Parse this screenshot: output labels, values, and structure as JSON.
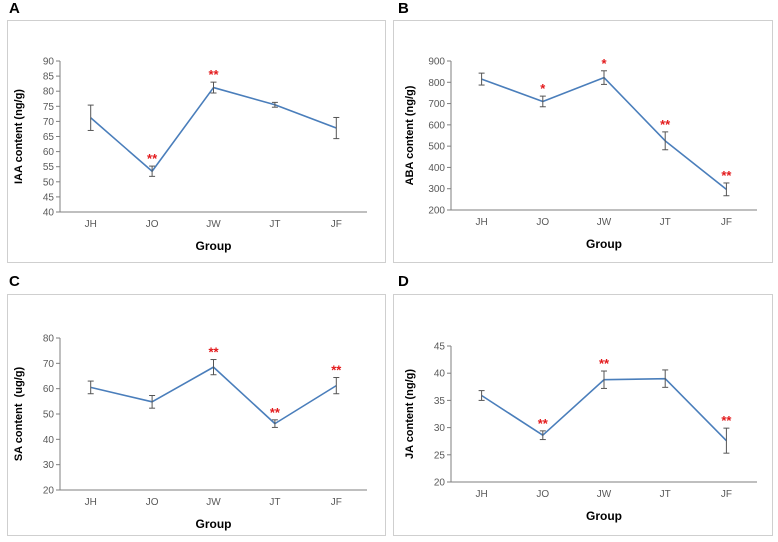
{
  "colors": {
    "line": "#4a7ebb",
    "significance": "#e31a1c",
    "axis": "#7f7f7f",
    "text": "#595959",
    "frame": "#cfcfcf"
  },
  "chart_data": [
    {
      "panel_label": "A",
      "type": "line",
      "categories": [
        "JH",
        "JO",
        "JW",
        "JT",
        "JF"
      ],
      "values": [
        71.2,
        53.5,
        81.2,
        75.5,
        67.8
      ],
      "errors": [
        4.2,
        1.7,
        1.8,
        0.8,
        3.5
      ],
      "significance": [
        "",
        "**",
        "**",
        "",
        ""
      ],
      "xlabel": "Group",
      "ylabel": "IAA content (ng/g)",
      "ylim": [
        40,
        90
      ],
      "yticks": [
        40,
        45,
        50,
        55,
        60,
        65,
        70,
        75,
        80,
        85,
        90
      ],
      "grid": false
    },
    {
      "panel_label": "B",
      "type": "line",
      "categories": [
        "JH",
        "JO",
        "JW",
        "JT",
        "JF"
      ],
      "values": [
        815,
        710,
        822,
        525,
        297
      ],
      "errors": [
        28,
        25,
        32,
        42,
        30
      ],
      "significance": [
        "",
        "*",
        "*",
        "**",
        "**"
      ],
      "xlabel": "Group",
      "ylabel": "ABA content (ng/g)",
      "ylim": [
        200,
        900
      ],
      "yticks": [
        200,
        300,
        400,
        500,
        600,
        700,
        800,
        900
      ],
      "grid": false
    },
    {
      "panel_label": "C",
      "type": "line",
      "categories": [
        "JH",
        "JO",
        "JW",
        "JT",
        "JF"
      ],
      "values": [
        60.5,
        54.8,
        68.5,
        46.2,
        61.2
      ],
      "errors": [
        2.5,
        2.5,
        3.0,
        1.5,
        3.2
      ],
      "significance": [
        "",
        "",
        "**",
        "**",
        "**"
      ],
      "xlabel": "Group",
      "ylabel": "SA content  (ug/g)",
      "ylim": [
        20,
        80
      ],
      "yticks": [
        20,
        30,
        40,
        50,
        60,
        70,
        80
      ],
      "grid": false
    },
    {
      "panel_label": "D",
      "type": "line",
      "categories": [
        "JH",
        "JO",
        "JW",
        "JT",
        "JF"
      ],
      "values": [
        35.9,
        28.6,
        38.8,
        39.0,
        27.6
      ],
      "errors": [
        0.9,
        0.8,
        1.6,
        1.6,
        2.3
      ],
      "significance": [
        "",
        "**",
        "**",
        "",
        "**"
      ],
      "xlabel": "Group",
      "ylabel": "JA content (ng/g)",
      "ylim": [
        20,
        45
      ],
      "yticks": [
        20,
        25,
        30,
        35,
        40,
        45
      ],
      "grid": false
    }
  ]
}
